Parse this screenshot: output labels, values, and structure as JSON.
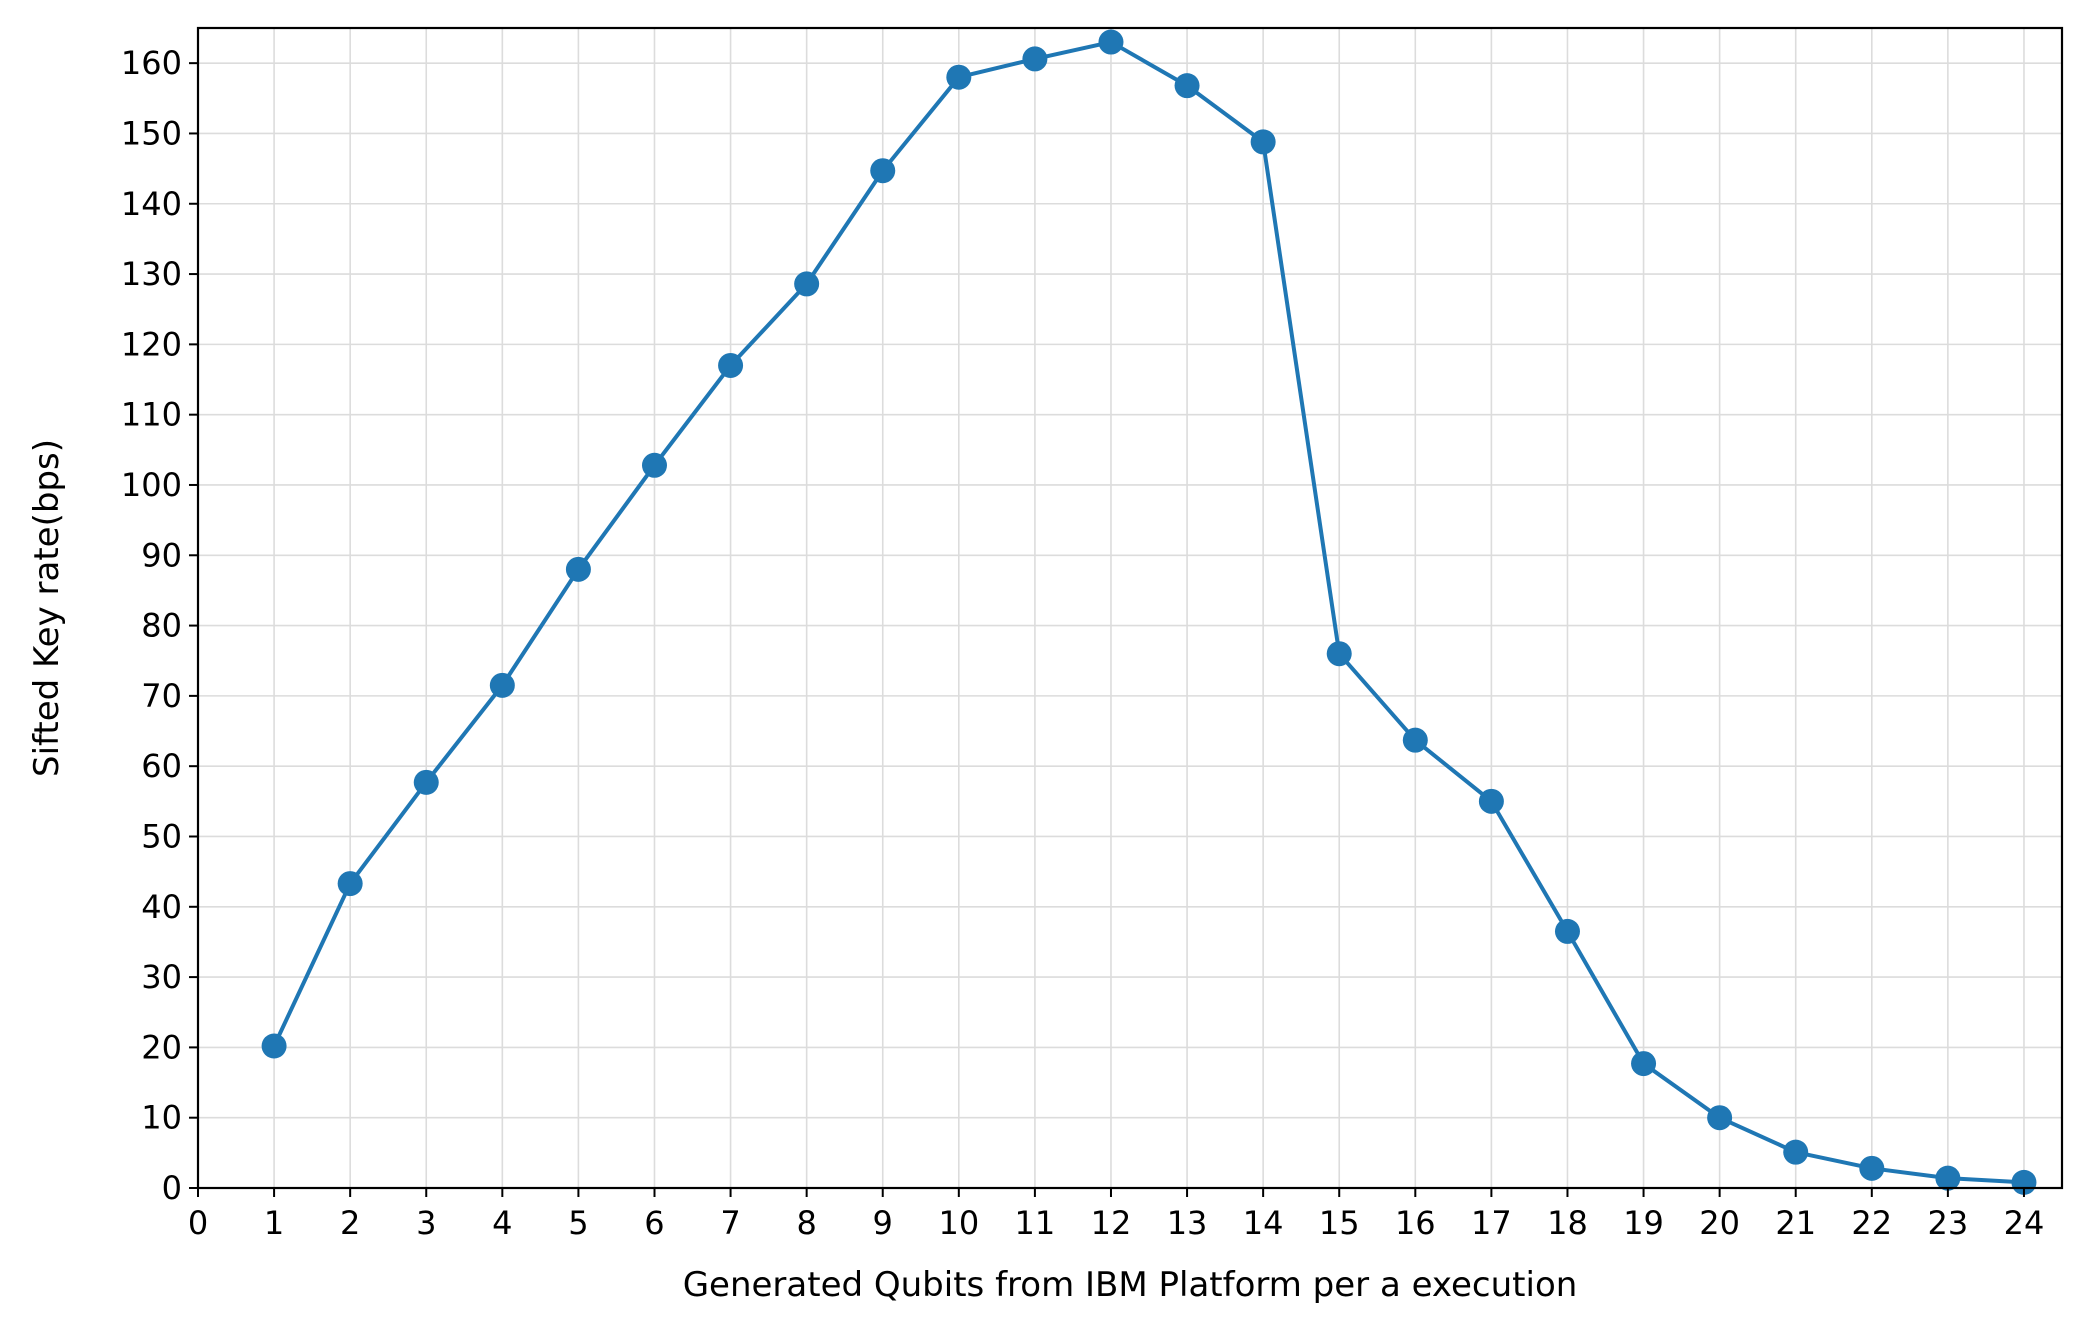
{
  "chart_data": {
    "type": "line",
    "title": "",
    "xlabel": "Generated Qubits from IBM Platform per a execution",
    "ylabel": "Sifted Key rate(bps)",
    "xlim": [
      0,
      24.5
    ],
    "ylim": [
      0,
      165
    ],
    "xticks": [
      0,
      1,
      2,
      3,
      4,
      5,
      6,
      7,
      8,
      9,
      10,
      11,
      12,
      13,
      14,
      15,
      16,
      17,
      18,
      19,
      20,
      21,
      22,
      23,
      24
    ],
    "yticks": [
      0,
      10,
      20,
      30,
      40,
      50,
      60,
      70,
      80,
      90,
      100,
      110,
      120,
      130,
      140,
      150,
      160
    ],
    "grid": true,
    "legend": "none",
    "series": [
      {
        "color": "#1f77b4",
        "marker": "circle",
        "x": [
          1,
          2,
          3,
          4,
          5,
          6,
          7,
          8,
          9,
          10,
          11,
          12,
          13,
          14,
          15,
          16,
          17,
          18,
          19,
          20,
          21,
          22,
          23,
          24
        ],
        "y": [
          20.2,
          43.3,
          57.7,
          71.5,
          88.0,
          102.8,
          117.0,
          128.6,
          144.7,
          158.0,
          160.6,
          163.0,
          156.8,
          148.8,
          76.0,
          63.7,
          55.0,
          36.5,
          17.7,
          10.0,
          5.1,
          2.8,
          1.4,
          0.8
        ]
      }
    ]
  }
}
